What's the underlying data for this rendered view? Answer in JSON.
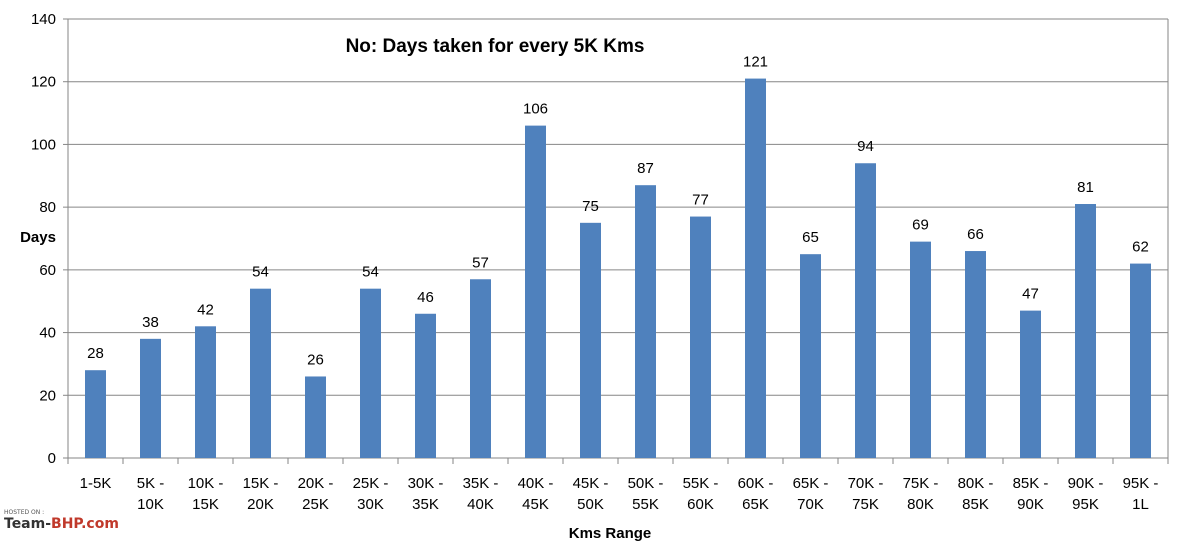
{
  "chart_data": {
    "type": "bar",
    "title": "No: Days taken for every 5K Kms",
    "xlabel": "Kms Range",
    "ylabel": "Days",
    "ylim": [
      0,
      140
    ],
    "yticks": [
      0,
      20,
      40,
      60,
      80,
      100,
      120,
      140
    ],
    "grid": true,
    "legend": "none",
    "categories": [
      [
        "1-5K"
      ],
      [
        "5K -",
        "10K"
      ],
      [
        "10K -",
        "15K"
      ],
      [
        "15K -",
        "20K"
      ],
      [
        "20K -",
        "25K"
      ],
      [
        "25K -",
        "30K"
      ],
      [
        "30K -",
        "35K"
      ],
      [
        "35K -",
        "40K"
      ],
      [
        "40K -",
        "45K"
      ],
      [
        "45K -",
        "50K"
      ],
      [
        "50K -",
        "55K"
      ],
      [
        "55K -",
        "60K"
      ],
      [
        "60K -",
        "65K"
      ],
      [
        "65K -",
        "70K"
      ],
      [
        "70K -",
        "75K"
      ],
      [
        "75K -",
        "80K"
      ],
      [
        "80K -",
        "85K"
      ],
      [
        "85K -",
        "90K"
      ],
      [
        "90K -",
        "95K"
      ],
      [
        "95K -",
        "1L"
      ]
    ],
    "values": [
      28,
      38,
      42,
      54,
      26,
      54,
      46,
      57,
      106,
      75,
      87,
      77,
      121,
      65,
      94,
      69,
      66,
      47,
      81,
      62
    ],
    "bar_color": "#4f81bd",
    "grid_color": "#868686"
  },
  "watermark": {
    "hosted_on": "HOSTED ON :",
    "brand_left": "Team-",
    "brand_right": "BHP.com"
  }
}
